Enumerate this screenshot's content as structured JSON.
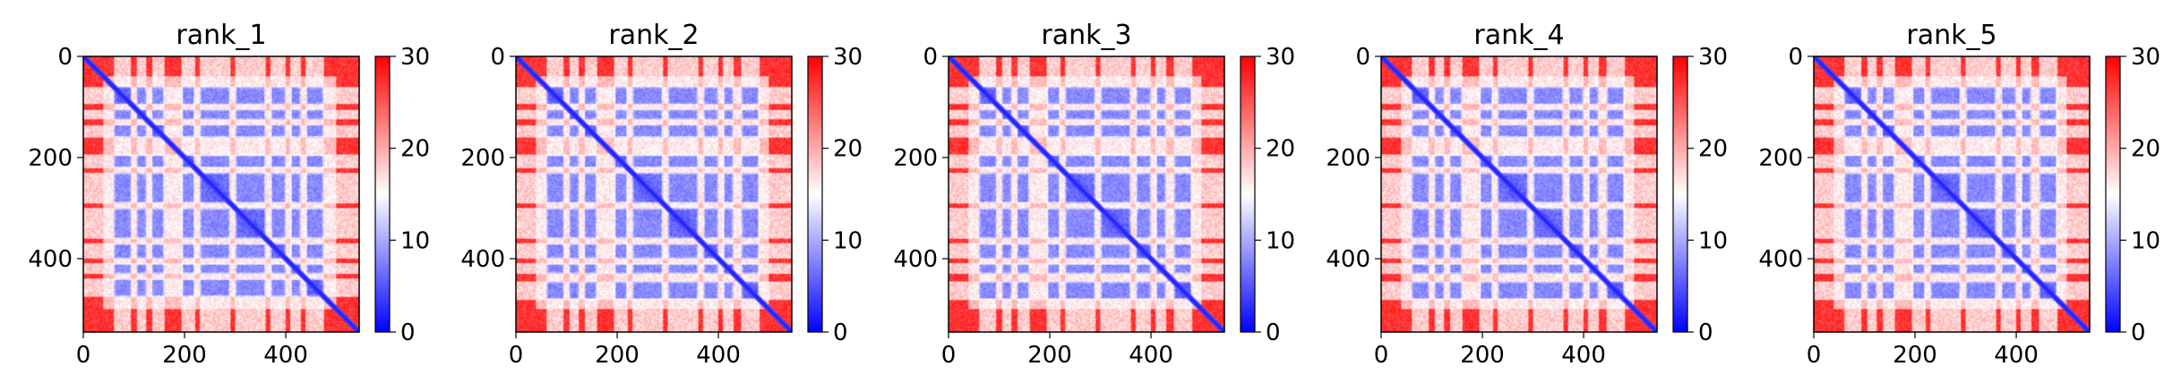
{
  "chart_data": [
    {
      "type": "heatmap",
      "title": "rank_1",
      "xlabel": "",
      "ylabel": "",
      "xlim": [
        0,
        545
      ],
      "ylim": [
        545,
        0
      ],
      "xticks": [
        "0",
        "200",
        "400"
      ],
      "yticks": [
        "0",
        "200",
        "400"
      ],
      "colorbar": {
        "range": [
          0,
          30
        ],
        "ticks": [
          "0",
          "10",
          "20",
          "30"
        ],
        "colormap": "bwr"
      },
      "matrix_size": 545,
      "blocks": [
        [
          60,
          95
        ],
        [
          105,
          125
        ],
        [
          135,
          160
        ],
        [
          195,
          220
        ],
        [
          230,
          290
        ],
        [
          300,
          360
        ],
        [
          370,
          400
        ],
        [
          410,
          430
        ],
        [
          440,
          475
        ]
      ]
    },
    {
      "type": "heatmap",
      "title": "rank_2",
      "xlabel": "",
      "ylabel": "",
      "xlim": [
        0,
        545
      ],
      "ylim": [
        545,
        0
      ],
      "xticks": [
        "0",
        "200",
        "400"
      ],
      "yticks": [
        "0",
        "200",
        "400"
      ],
      "colorbar": {
        "range": [
          0,
          30
        ],
        "ticks": [
          "0",
          "10",
          "20",
          "30"
        ],
        "colormap": "bwr"
      },
      "matrix_size": 545,
      "blocks": [
        [
          60,
          95
        ],
        [
          105,
          125
        ],
        [
          135,
          160
        ],
        [
          195,
          220
        ],
        [
          230,
          290
        ],
        [
          300,
          360
        ],
        [
          370,
          400
        ],
        [
          410,
          430
        ],
        [
          445,
          480
        ]
      ]
    },
    {
      "type": "heatmap",
      "title": "rank_3",
      "xlabel": "",
      "ylabel": "",
      "xlim": [
        0,
        545
      ],
      "ylim": [
        545,
        0
      ],
      "xticks": [
        "0",
        "200",
        "400"
      ],
      "yticks": [
        "0",
        "200",
        "400"
      ],
      "colorbar": {
        "range": [
          0,
          30
        ],
        "ticks": [
          "0",
          "10",
          "20",
          "30"
        ],
        "colormap": "bwr"
      },
      "matrix_size": 545,
      "blocks": [
        [
          60,
          95
        ],
        [
          105,
          125
        ],
        [
          135,
          160
        ],
        [
          195,
          220
        ],
        [
          230,
          290
        ],
        [
          300,
          360
        ],
        [
          370,
          400
        ],
        [
          410,
          430
        ],
        [
          445,
          480
        ]
      ]
    },
    {
      "type": "heatmap",
      "title": "rank_4",
      "xlabel": "",
      "ylabel": "",
      "xlim": [
        0,
        545
      ],
      "ylim": [
        545,
        0
      ],
      "xticks": [
        "0",
        "200",
        "400"
      ],
      "yticks": [
        "0",
        "200",
        "400"
      ],
      "colorbar": {
        "range": [
          0,
          30
        ],
        "ticks": [
          "0",
          "10",
          "20",
          "30"
        ],
        "colormap": "bwr"
      },
      "matrix_size": 545,
      "blocks": [
        [
          60,
          95
        ],
        [
          105,
          125
        ],
        [
          135,
          160
        ],
        [
          195,
          220
        ],
        [
          230,
          290
        ],
        [
          300,
          360
        ],
        [
          370,
          400
        ],
        [
          410,
          430
        ],
        [
          445,
          480
        ]
      ]
    },
    {
      "type": "heatmap",
      "title": "rank_5",
      "xlabel": "",
      "ylabel": "",
      "xlim": [
        0,
        545
      ],
      "ylim": [
        545,
        0
      ],
      "xticks": [
        "0",
        "200",
        "400"
      ],
      "yticks": [
        "0",
        "200",
        "400"
      ],
      "colorbar": {
        "range": [
          0,
          30
        ],
        "ticks": [
          "0",
          "10",
          "20",
          "30"
        ],
        "colormap": "bwr"
      },
      "matrix_size": 545,
      "blocks": [
        [
          60,
          95
        ],
        [
          105,
          125
        ],
        [
          135,
          160
        ],
        [
          195,
          220
        ],
        [
          230,
          290
        ],
        [
          300,
          360
        ],
        [
          370,
          400
        ],
        [
          410,
          430
        ],
        [
          445,
          480
        ]
      ]
    }
  ]
}
